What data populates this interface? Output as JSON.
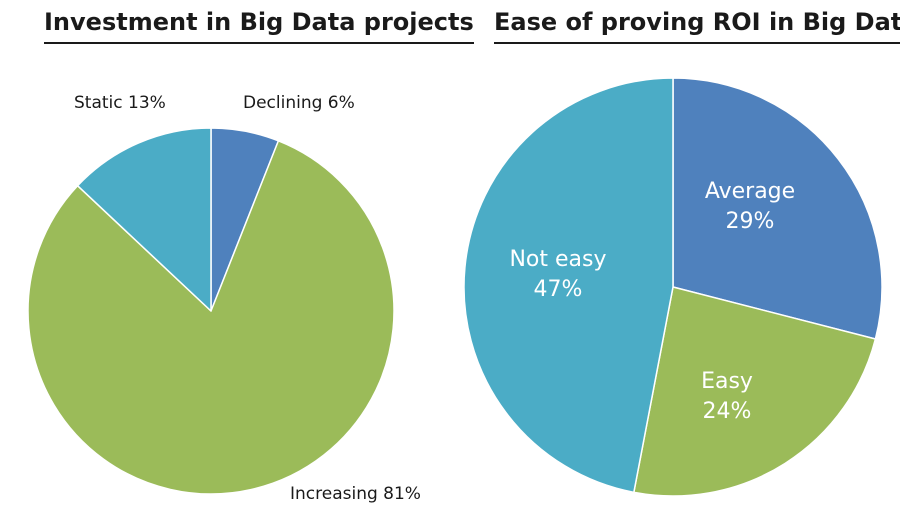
{
  "chart_data": [
    {
      "type": "pie",
      "title": "Investment in Big Data projects",
      "slices": [
        {
          "label": "Declining",
          "value": 6,
          "display": "Declining 6%",
          "color": "#4F81BD"
        },
        {
          "label": "Increasing",
          "value": 81,
          "display": "Increasing 81%",
          "color": "#9BBB59"
        },
        {
          "label": "Static",
          "value": 13,
          "display": "Static 13%",
          "color": "#4BACC6"
        }
      ]
    },
    {
      "type": "pie",
      "title": "Ease of proving ROI in Big Data",
      "slices": [
        {
          "label": "Average",
          "value": 29,
          "display": "29%",
          "color": "#4F81BD"
        },
        {
          "label": "Easy",
          "value": 24,
          "display": "24%",
          "color": "#9BBB59"
        },
        {
          "label": "Not easy",
          "value": 47,
          "display": "47%",
          "color": "#4BACC6"
        }
      ]
    }
  ]
}
